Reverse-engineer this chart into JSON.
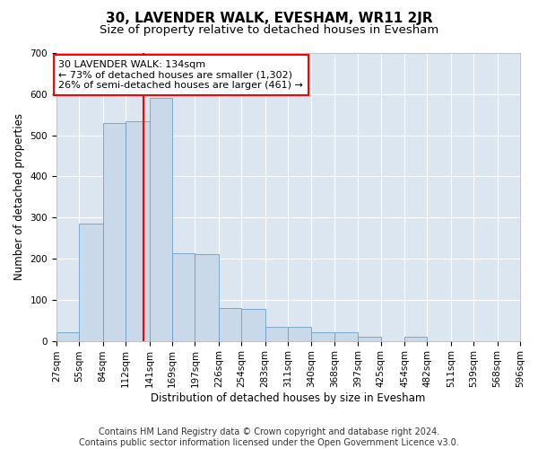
{
  "title": "30, LAVENDER WALK, EVESHAM, WR11 2JR",
  "subtitle": "Size of property relative to detached houses in Evesham",
  "xlabel": "Distribution of detached houses by size in Evesham",
  "ylabel": "Number of detached properties",
  "footer_line1": "Contains HM Land Registry data © Crown copyright and database right 2024.",
  "footer_line2": "Contains public sector information licensed under the Open Government Licence v3.0.",
  "annotation_line1": "30 LAVENDER WALK: 134sqm",
  "annotation_line2": "← 73% of detached houses are smaller (1,302)",
  "annotation_line3": "26% of semi-detached houses are larger (461) →",
  "property_size": 134,
  "bar_color": "#c9d9ea",
  "bar_edge_color": "#6b9fc8",
  "vline_color": "red",
  "annotation_box_color": "red",
  "bins": [
    27,
    55,
    84,
    112,
    141,
    169,
    197,
    226,
    254,
    283,
    311,
    340,
    368,
    397,
    425,
    454,
    482,
    511,
    539,
    568,
    596
  ],
  "bar_heights": [
    22,
    285,
    530,
    535,
    590,
    213,
    212,
    80,
    78,
    35,
    34,
    22,
    20,
    10,
    0,
    10,
    0,
    0,
    0,
    0
  ],
  "ylim": [
    0,
    700
  ],
  "yticks": [
    0,
    100,
    200,
    300,
    400,
    500,
    600,
    700
  ],
  "plot_background": "#dce6f0",
  "grid_color": "white",
  "title_fontsize": 11,
  "subtitle_fontsize": 9.5,
  "label_fontsize": 8.5,
  "tick_fontsize": 7.5,
  "annotation_fontsize": 8,
  "footer_fontsize": 7
}
